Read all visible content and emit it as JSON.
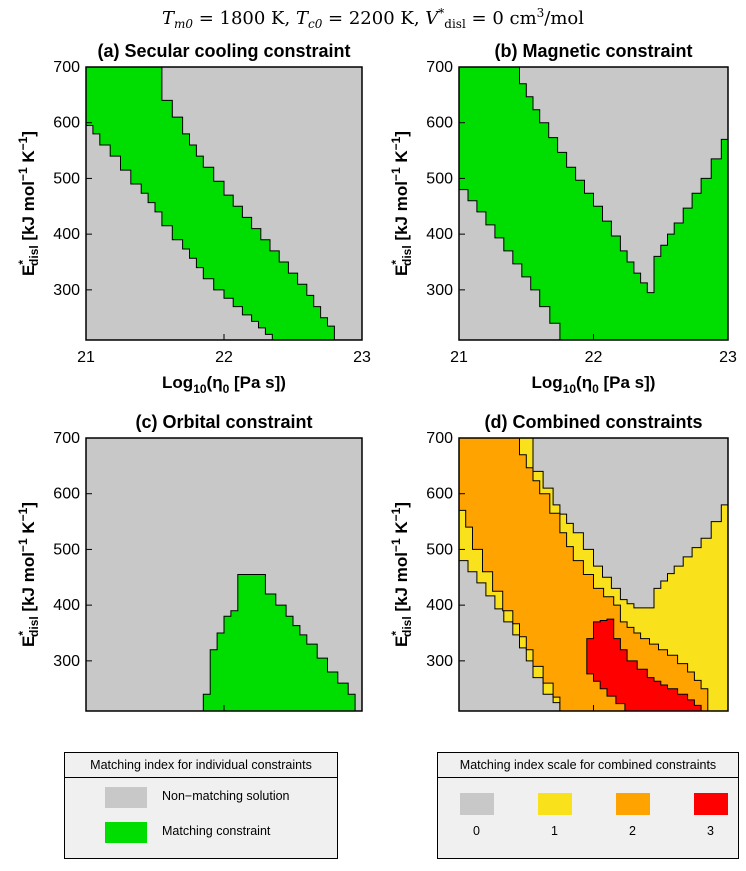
{
  "figure": {
    "suptitle": "T_m0 = 1800 K, T_c0 = 2200 K, V*_disl = 0 cm³/mol",
    "suptitle_parts": {
      "tm": "T",
      "tm_sub": "m0",
      "tm_val": " = 1800 K, ",
      "tc": "T",
      "tc_sub": "c0",
      "tc_val": " = 2200 K, ",
      "v": "V",
      "v_sup": "*",
      "v_sub": "disl",
      "v_val": " = 0 cm",
      "v_unit_sup": "3",
      "v_unit_end": "/mol"
    }
  },
  "colors": {
    "non_matching": "#c8c8c8",
    "match_1": "#f9e21b",
    "match_2": "#fea300",
    "match_3": "#ff0000",
    "individual_match": "#00dd00",
    "outline": "#000000"
  },
  "chart_data": [
    {
      "type": "heatmap",
      "id": "a",
      "title": "(a) Secular cooling constraint",
      "xlabel": "Log10(η0 [Pa s])",
      "ylabel": "E*disl [kJ mol−1 K−1]",
      "xlim": [
        21,
        23
      ],
      "ylim": [
        210,
        700
      ],
      "xticks": [
        21,
        22,
        23
      ],
      "yticks": [
        300,
        400,
        500,
        600,
        700
      ],
      "regions": [
        {
          "value": 1,
          "label": "Matching constraint",
          "upper_boundary": [
            [
              21.0,
              700
            ],
            [
              21.5,
              700
            ],
            [
              21.55,
              640
            ],
            [
              21.7,
              580
            ],
            [
              21.85,
              520
            ],
            [
              22.0,
              470
            ],
            [
              22.2,
              410
            ],
            [
              22.4,
              350
            ],
            [
              22.6,
              290
            ],
            [
              22.7,
              250
            ],
            [
              22.8,
              220
            ],
            [
              22.8,
              210
            ]
          ],
          "lower_boundary": [
            [
              21.0,
              610
            ],
            [
              21.1,
              580
            ],
            [
              21.25,
              540
            ],
            [
              21.4,
              490
            ],
            [
              21.55,
              440
            ],
            [
              21.7,
              390
            ],
            [
              21.85,
              340
            ],
            [
              22.0,
              300
            ],
            [
              22.2,
              255
            ],
            [
              22.35,
              220
            ],
            [
              22.4,
              210
            ]
          ]
        }
      ]
    },
    {
      "type": "heatmap",
      "id": "b",
      "title": "(b) Magnetic constraint",
      "xlabel": "Log10(η0 [Pa s])",
      "ylabel": "E*disl [kJ mol−1 K−1]",
      "xlim": [
        21,
        23
      ],
      "ylim": [
        210,
        700
      ],
      "xticks": [
        21,
        22,
        23
      ],
      "yticks": [
        300,
        400,
        500,
        600,
        700
      ],
      "regions": [
        {
          "value": 1,
          "label": "Matching constraint",
          "upper_boundary": [
            [
              21.0,
              700
            ],
            [
              21.4,
              700
            ],
            [
              21.45,
              670
            ],
            [
              21.6,
              600
            ],
            [
              21.8,
              520
            ],
            [
              22.0,
              450
            ],
            [
              22.2,
              370
            ],
            [
              22.3,
              330
            ],
            [
              22.4,
              295
            ],
            [
              22.45,
              360
            ],
            [
              22.6,
              420
            ],
            [
              22.8,
              500
            ],
            [
              22.95,
              570
            ],
            [
              23.0,
              600
            ]
          ],
          "lower_boundary": [
            [
              21.0,
              500
            ],
            [
              21.2,
              440
            ],
            [
              21.4,
              370
            ],
            [
              21.6,
              300
            ],
            [
              21.75,
              240
            ],
            [
              21.8,
              210
            ]
          ]
        }
      ]
    },
    {
      "type": "heatmap",
      "id": "c",
      "title": "(c) Orbital constraint",
      "xlabel": "Log10(η0 [Pa s])",
      "ylabel": "E*disl [kJ mol−1 K−1]",
      "xlim": [
        21,
        23
      ],
      "ylim": [
        210,
        700
      ],
      "xticks": [
        21,
        22,
        23
      ],
      "yticks": [
        300,
        400,
        500,
        600,
        700
      ],
      "regions": [
        {
          "value": 1,
          "label": "Matching constraint",
          "boundary": [
            [
              22.1,
              210
            ],
            [
              21.85,
              210
            ],
            [
              21.85,
              240
            ],
            [
              21.9,
              320
            ],
            [
              22.0,
              380
            ],
            [
              22.1,
              400
            ],
            [
              22.1,
              455
            ],
            [
              22.25,
              455
            ],
            [
              22.3,
              420
            ],
            [
              22.45,
              380
            ],
            [
              22.6,
              330
            ],
            [
              22.75,
              280
            ],
            [
              22.9,
              240
            ],
            [
              22.95,
              210
            ]
          ]
        }
      ]
    },
    {
      "type": "heatmap",
      "id": "d",
      "title": "(d) Combined constraints",
      "xlabel": "Log10(η0 [Pa s])",
      "ylabel": "E*disl [kJ mol−1 K−1]",
      "xlim": [
        21,
        23
      ],
      "ylim": [
        210,
        700
      ],
      "xticks": [
        21,
        22,
        23
      ],
      "yticks": [
        300,
        400,
        500,
        600,
        700
      ],
      "regions": [
        {
          "value": 1,
          "boundary": [
            [
              21.0,
              700
            ],
            [
              21.5,
              700
            ],
            [
              21.55,
              640
            ],
            [
              21.7,
              580
            ],
            [
              21.85,
              530
            ],
            [
              22.0,
              470
            ],
            [
              22.2,
              410
            ],
            [
              22.3,
              395
            ],
            [
              22.4,
              395
            ],
            [
              22.45,
              430
            ],
            [
              22.6,
              470
            ],
            [
              22.8,
              520
            ],
            [
              22.95,
              580
            ],
            [
              23.0,
              600
            ],
            [
              23.0,
              210
            ],
            [
              21.8,
              210
            ],
            [
              21.7,
              240
            ],
            [
              21.55,
              300
            ],
            [
              21.4,
              370
            ],
            [
              21.2,
              440
            ],
            [
              21.0,
              500
            ]
          ]
        },
        {
          "value": 2,
          "boundary": [
            [
              21.0,
              700
            ],
            [
              21.4,
              700
            ],
            [
              21.45,
              670
            ],
            [
              21.6,
              600
            ],
            [
              21.75,
              530
            ],
            [
              21.85,
              480
            ],
            [
              22.0,
              430
            ],
            [
              22.15,
              400
            ],
            [
              22.2,
              370
            ],
            [
              22.35,
              340
            ],
            [
              22.55,
              310
            ],
            [
              22.7,
              280
            ],
            [
              22.8,
              250
            ],
            [
              22.85,
              210
            ],
            [
              21.8,
              210
            ],
            [
              21.7,
              260
            ],
            [
              21.55,
              320
            ],
            [
              21.4,
              390
            ],
            [
              21.25,
              460
            ],
            [
              21.1,
              540
            ],
            [
              21.0,
              600
            ]
          ]
        },
        {
          "value": 3,
          "boundary": [
            [
              21.95,
              340
            ],
            [
              22.0,
              370
            ],
            [
              22.1,
              375
            ],
            [
              22.15,
              340
            ],
            [
              22.25,
              300
            ],
            [
              22.4,
              270
            ],
            [
              22.55,
              250
            ],
            [
              22.7,
              230
            ],
            [
              22.8,
              210
            ],
            [
              22.3,
              210
            ],
            [
              22.1,
              250
            ],
            [
              21.95,
              290
            ]
          ]
        }
      ]
    }
  ],
  "legend_individual": {
    "title": "Matching index for individual constraints",
    "items": [
      {
        "label": "Non−matching solution",
        "color": "#c8c8c8"
      },
      {
        "label": "Matching constraint",
        "color": "#00dd00"
      }
    ]
  },
  "legend_combined": {
    "title": "Matching index scale for combined constraints",
    "items": [
      {
        "label": "0",
        "color": "#c8c8c8"
      },
      {
        "label": "1",
        "color": "#f9e21b"
      },
      {
        "label": "2",
        "color": "#fea300"
      },
      {
        "label": "3",
        "color": "#ff0000"
      }
    ]
  }
}
